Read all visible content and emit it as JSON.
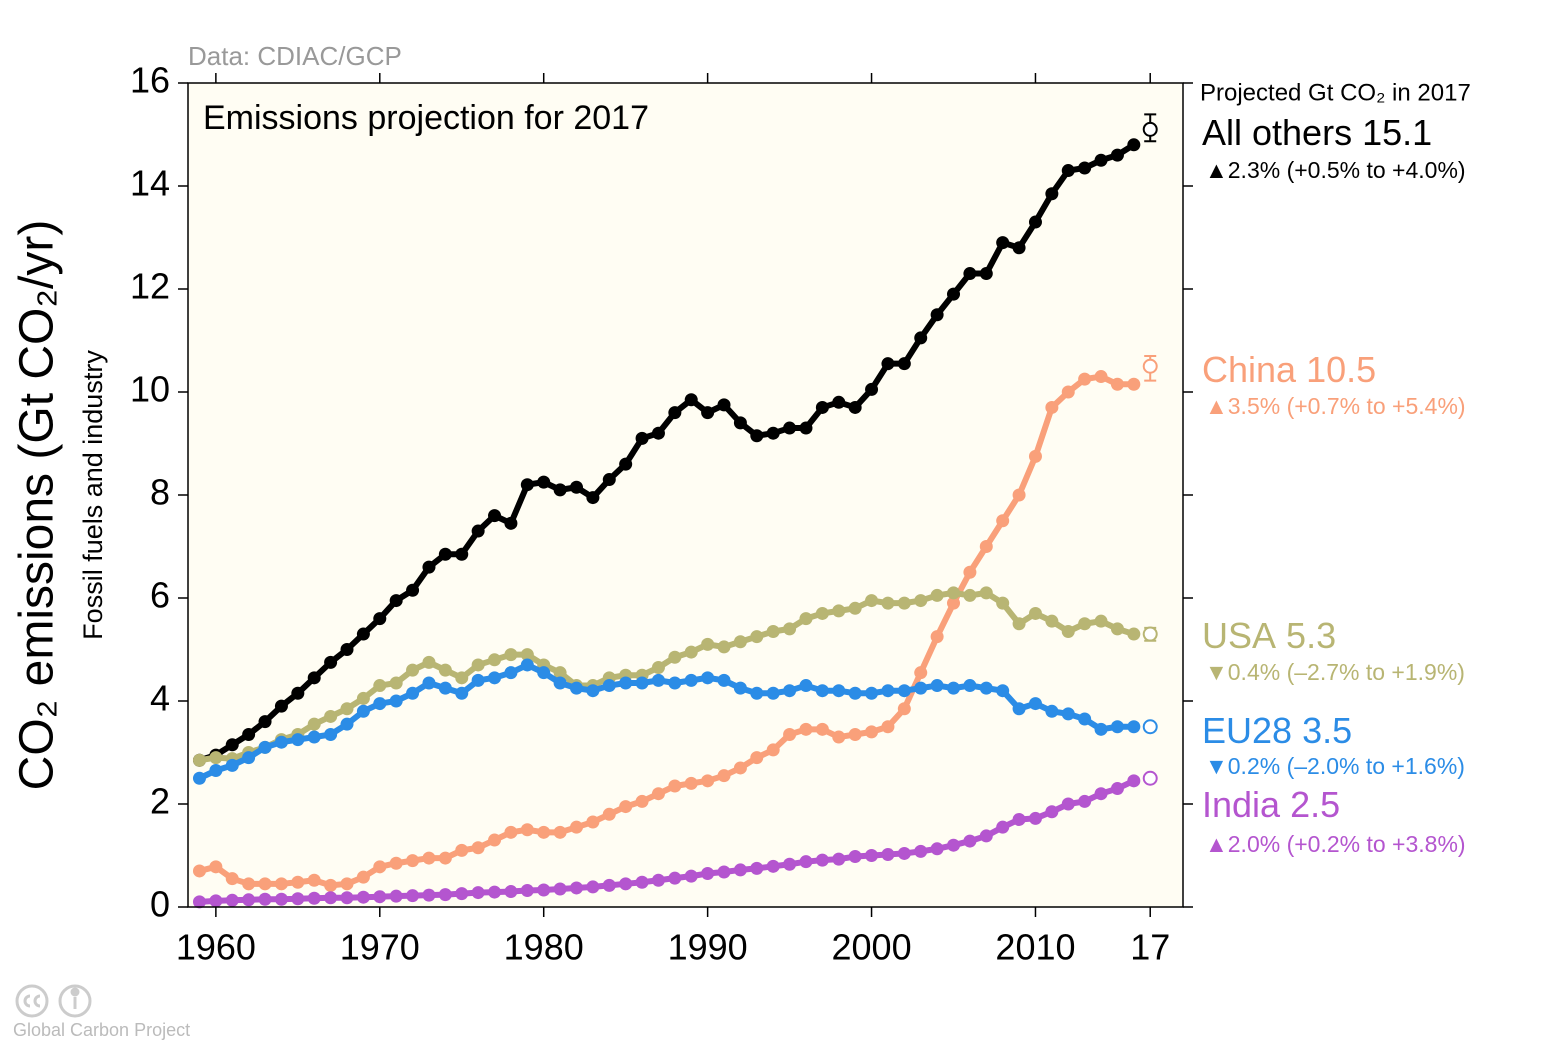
{
  "chart_data": {
    "type": "line",
    "title": "Emissions projection for 2017",
    "source": "Data: CDIAC/GCP",
    "ylabel": "CO₂ emissions (Gt CO₂/yr)",
    "ylabel2": "Fossil fuels and industry",
    "projection_header": "Projected Gt CO₂ in 2017",
    "credit": "Global Carbon Project",
    "xlim": [
      1958.3,
      2019
    ],
    "ylim": [
      0,
      16
    ],
    "yticks": [
      0,
      2,
      4,
      6,
      8,
      10,
      12,
      14,
      16
    ],
    "xticks": [
      1960,
      1970,
      1980,
      1990,
      2000,
      2010,
      {
        "value": 2017,
        "label": "17"
      }
    ],
    "projection_x": 2017,
    "x": [
      1959,
      1960,
      1961,
      1962,
      1963,
      1964,
      1965,
      1966,
      1967,
      1968,
      1969,
      1970,
      1971,
      1972,
      1973,
      1974,
      1975,
      1976,
      1977,
      1978,
      1979,
      1980,
      1981,
      1982,
      1983,
      1984,
      1985,
      1986,
      1987,
      1988,
      1989,
      1990,
      1991,
      1992,
      1993,
      1994,
      1995,
      1996,
      1997,
      1998,
      1999,
      2000,
      2001,
      2002,
      2003,
      2004,
      2005,
      2006,
      2007,
      2008,
      2009,
      2010,
      2011,
      2012,
      2013,
      2014,
      2015,
      2016
    ],
    "series": [
      {
        "name": "All others",
        "color": "#000000",
        "projection": 15.1,
        "projection_range": [
          14.87,
          15.39
        ],
        "change": "▲2.3% (+0.5% to +4.0%)",
        "values": [
          2.85,
          2.95,
          3.15,
          3.35,
          3.6,
          3.9,
          4.15,
          4.45,
          4.75,
          5.0,
          5.3,
          5.6,
          5.95,
          6.15,
          6.6,
          6.85,
          6.85,
          7.3,
          7.6,
          7.45,
          8.2,
          8.25,
          8.1,
          8.15,
          7.95,
          8.3,
          8.6,
          9.1,
          9.2,
          9.6,
          9.85,
          9.6,
          9.75,
          9.4,
          9.15,
          9.2,
          9.3,
          9.3,
          9.7,
          9.8,
          9.7,
          10.05,
          10.55,
          10.55,
          11.05,
          11.5,
          11.9,
          12.3,
          12.3,
          12.9,
          12.8,
          13.3,
          13.85,
          14.3,
          14.35,
          14.5,
          14.6,
          14.8
        ]
      },
      {
        "name": "China",
        "color": "#f9a07a",
        "projection": 10.5,
        "projection_range": [
          10.22,
          10.7
        ],
        "change": "▲3.5% (+0.7% to +5.4%)",
        "values": [
          0.7,
          0.78,
          0.55,
          0.45,
          0.45,
          0.45,
          0.48,
          0.52,
          0.42,
          0.45,
          0.58,
          0.78,
          0.85,
          0.9,
          0.95,
          0.95,
          1.1,
          1.15,
          1.3,
          1.45,
          1.5,
          1.45,
          1.45,
          1.55,
          1.65,
          1.8,
          1.95,
          2.05,
          2.2,
          2.35,
          2.4,
          2.45,
          2.55,
          2.7,
          2.9,
          3.05,
          3.35,
          3.45,
          3.45,
          3.3,
          3.35,
          3.4,
          3.5,
          3.85,
          4.55,
          5.25,
          5.9,
          6.5,
          7.0,
          7.5,
          8.0,
          8.75,
          9.7,
          10.0,
          10.25,
          10.3,
          10.15,
          10.15
        ]
      },
      {
        "name": "USA",
        "color": "#b8b573",
        "projection": 5.3,
        "projection_range": [
          5.17,
          5.42
        ],
        "change": "▼0.4% (–2.7% to +1.9%)",
        "values": [
          2.85,
          2.9,
          2.88,
          3.0,
          3.1,
          3.25,
          3.35,
          3.55,
          3.7,
          3.85,
          4.05,
          4.3,
          4.35,
          4.6,
          4.75,
          4.6,
          4.45,
          4.7,
          4.8,
          4.9,
          4.9,
          4.7,
          4.55,
          4.3,
          4.3,
          4.45,
          4.5,
          4.5,
          4.65,
          4.85,
          4.95,
          5.1,
          5.05,
          5.15,
          5.25,
          5.35,
          5.4,
          5.6,
          5.7,
          5.75,
          5.8,
          5.95,
          5.9,
          5.9,
          5.95,
          6.05,
          6.1,
          6.05,
          6.1,
          5.9,
          5.5,
          5.7,
          5.55,
          5.35,
          5.5,
          5.55,
          5.4,
          5.3
        ]
      },
      {
        "name": "EU28",
        "color": "#2b8ce6",
        "projection": 3.5,
        "projection_range": [
          3.43,
          3.56
        ],
        "change": "▼0.2% (–2.0% to +1.6%)",
        "values": [
          2.5,
          2.65,
          2.75,
          2.9,
          3.1,
          3.2,
          3.25,
          3.3,
          3.35,
          3.55,
          3.8,
          3.95,
          4.0,
          4.15,
          4.35,
          4.25,
          4.15,
          4.4,
          4.45,
          4.55,
          4.7,
          4.55,
          4.35,
          4.25,
          4.2,
          4.3,
          4.35,
          4.35,
          4.4,
          4.35,
          4.4,
          4.45,
          4.4,
          4.25,
          4.15,
          4.15,
          4.2,
          4.3,
          4.2,
          4.2,
          4.15,
          4.15,
          4.2,
          4.2,
          4.25,
          4.3,
          4.25,
          4.3,
          4.25,
          4.2,
          3.85,
          3.95,
          3.8,
          3.75,
          3.65,
          3.45,
          3.5,
          3.5
        ]
      },
      {
        "name": "India",
        "color": "#b455cf",
        "projection": 2.5,
        "projection_range": [
          2.45,
          2.55
        ],
        "change": "▲2.0% (+0.2% to +3.8%)",
        "values": [
          0.1,
          0.12,
          0.13,
          0.14,
          0.15,
          0.15,
          0.16,
          0.17,
          0.18,
          0.18,
          0.19,
          0.2,
          0.21,
          0.22,
          0.23,
          0.24,
          0.26,
          0.28,
          0.29,
          0.3,
          0.32,
          0.33,
          0.35,
          0.37,
          0.39,
          0.42,
          0.45,
          0.48,
          0.52,
          0.56,
          0.6,
          0.65,
          0.68,
          0.72,
          0.75,
          0.79,
          0.83,
          0.88,
          0.91,
          0.93,
          0.98,
          1.0,
          1.02,
          1.04,
          1.08,
          1.13,
          1.2,
          1.28,
          1.38,
          1.55,
          1.7,
          1.72,
          1.85,
          2.0,
          2.05,
          2.2,
          2.3,
          2.45
        ]
      }
    ]
  }
}
